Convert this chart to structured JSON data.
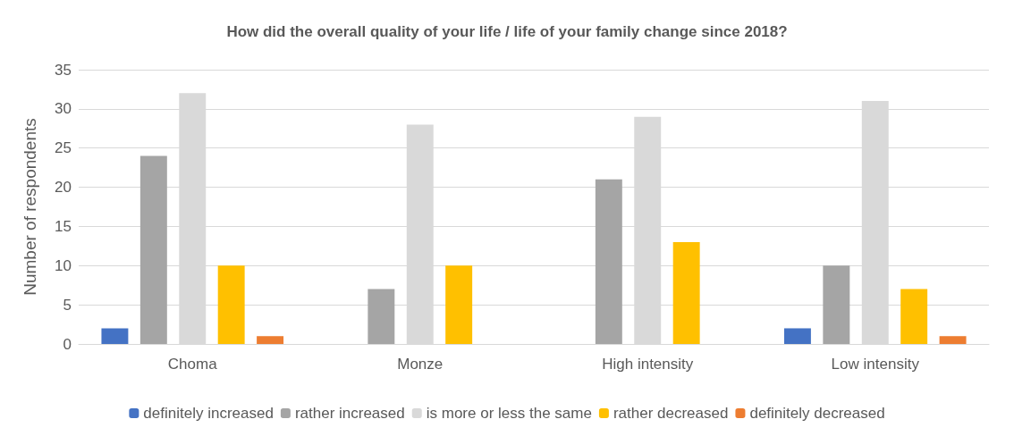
{
  "chart_data": {
    "type": "bar",
    "title": "How did the overall quality of your life / life of your family change since 2018?",
    "ylabel": "Number of respondents",
    "categories": [
      "Choma",
      "Monze",
      "High intensity",
      "Low intensity"
    ],
    "series": [
      {
        "name": "definitely increased",
        "color": "#4472c4",
        "values": [
          2,
          0,
          0,
          2
        ]
      },
      {
        "name": "rather increased",
        "color": "#a5a5a5",
        "values": [
          24,
          7,
          21,
          10
        ]
      },
      {
        "name": "is more or less the same",
        "color": "#d9d9d9",
        "values": [
          32,
          28,
          29,
          31
        ]
      },
      {
        "name": "rather decreased",
        "color": "#ffc000",
        "values": [
          10,
          10,
          13,
          7
        ]
      },
      {
        "name": "definitely decreased",
        "color": "#ed7d31",
        "values": [
          1,
          0,
          0,
          1
        ]
      }
    ],
    "ylim": [
      0,
      35
    ],
    "yticks": [
      0,
      5,
      10,
      15,
      20,
      25,
      30,
      35
    ],
    "grid": "y",
    "legend": "bottom"
  }
}
